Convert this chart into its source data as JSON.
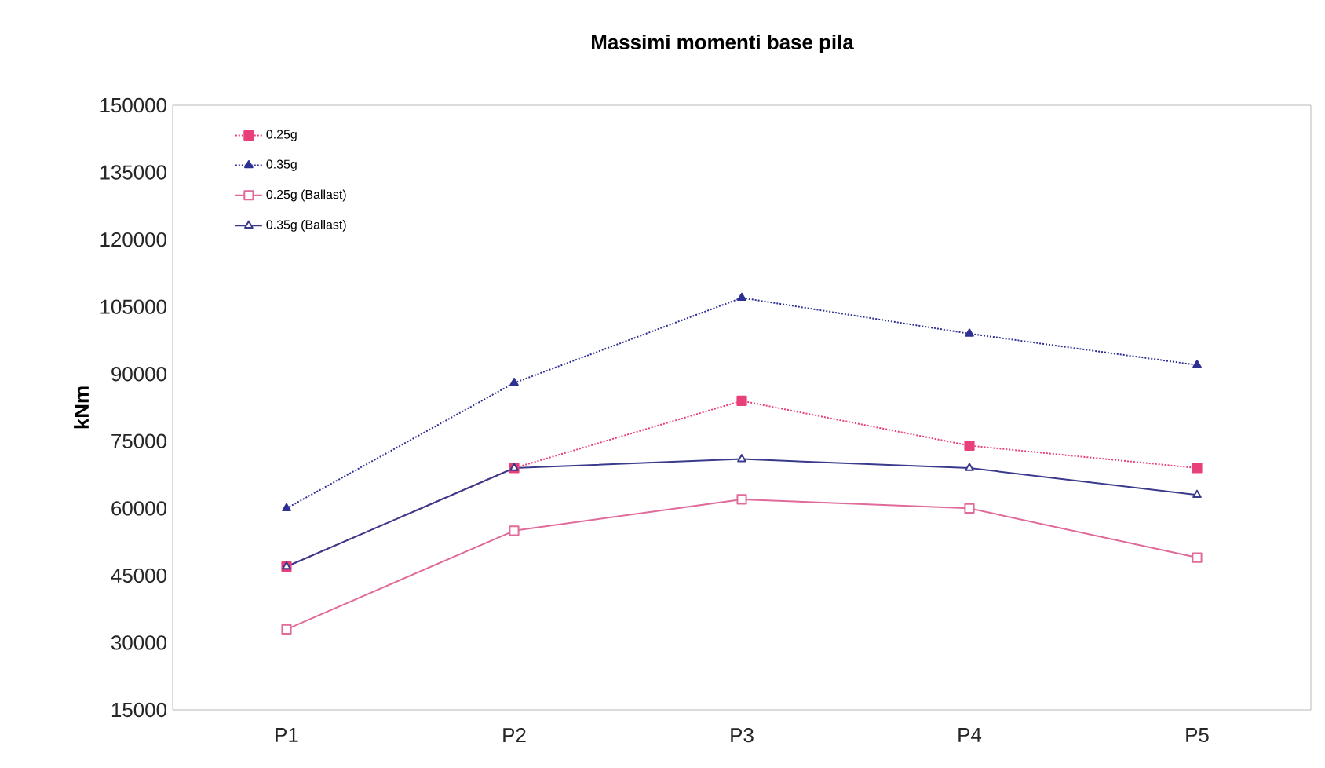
{
  "chart_data": {
    "type": "line",
    "title": "Massimi momenti base pila",
    "ylabel": "kNm",
    "categories": [
      "P1",
      "P2",
      "P3",
      "P4",
      "P5"
    ],
    "series": [
      {
        "name": "0.25g",
        "color": "#e8407a",
        "marker": "square",
        "line_style": "dotted",
        "values": [
          47000,
          69000,
          84000,
          74000,
          69000
        ]
      },
      {
        "name": "0.35g",
        "color": "#2e3192",
        "marker": "triangle",
        "line_style": "dotted",
        "values": [
          60000,
          88000,
          107000,
          99000,
          92000
        ]
      },
      {
        "name": "0.25g (Ballast)",
        "color": "#e06a9a",
        "marker": "square",
        "line_style": "solid",
        "values": [
          33000,
          55000,
          62000,
          60000,
          49000
        ]
      },
      {
        "name": "0.35g (Ballast)",
        "color": "#3a3a8c",
        "marker": "triangle",
        "line_style": "solid",
        "values": [
          47000,
          69000,
          71000,
          69000,
          63000
        ]
      }
    ],
    "ylim": [
      15000,
      150000
    ],
    "yticks": [
      15000,
      30000,
      45000,
      60000,
      75000,
      90000,
      105000,
      120000,
      135000,
      150000
    ],
    "grid": false,
    "legend": "top left"
  }
}
